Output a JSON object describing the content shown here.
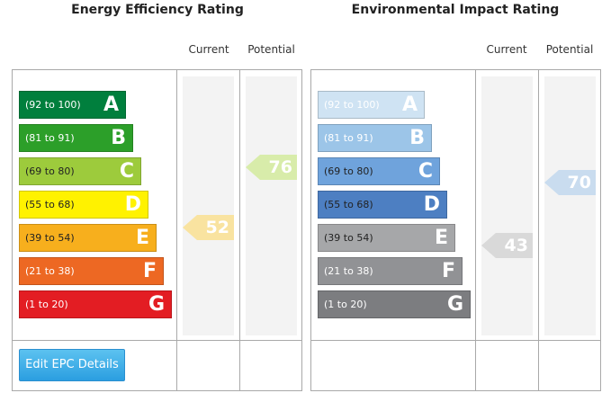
{
  "energy": {
    "title": "Energy Efficiency Rating",
    "current_label": "Current",
    "potential_label": "Potential",
    "bands": [
      {
        "range": "(92 to 100)",
        "letter": "A",
        "color": "#007f3d",
        "text_color": "#ffffff"
      },
      {
        "range": "(81 to 91)",
        "letter": "B",
        "color": "#2c9f29",
        "text_color": "#ffffff"
      },
      {
        "range": "(69 to 80)",
        "letter": "C",
        "color": "#9dcb3c",
        "text_color": "#222222"
      },
      {
        "range": "(55 to 68)",
        "letter": "D",
        "color": "#fff200",
        "text_color": "#222222"
      },
      {
        "range": "(39 to 54)",
        "letter": "E",
        "color": "#f7af1d",
        "text_color": "#222222"
      },
      {
        "range": "(21 to 38)",
        "letter": "F",
        "color": "#ed6823",
        "text_color": "#ffffff"
      },
      {
        "range": "(1 to 20)",
        "letter": "G",
        "color": "#e31d23",
        "text_color": "#ffffff"
      }
    ],
    "current": {
      "value": "52",
      "color": "#f9e3a0"
    },
    "potential": {
      "value": "76",
      "color": "#d8ecaa"
    }
  },
  "environment": {
    "title": "Environmental Impact Rating",
    "current_label": "Current",
    "potential_label": "Potential",
    "bands": [
      {
        "range": "(92 to 100)",
        "letter": "A",
        "color": "#cfe3f3",
        "text_color": "#ffffff"
      },
      {
        "range": "(81 to 91)",
        "letter": "B",
        "color": "#9cc5e8",
        "text_color": "#ffffff"
      },
      {
        "range": "(69 to 80)",
        "letter": "C",
        "color": "#6fa3dc",
        "text_color": "#222222"
      },
      {
        "range": "(55 to 68)",
        "letter": "D",
        "color": "#4d7fc2",
        "text_color": "#222222"
      },
      {
        "range": "(39 to 54)",
        "letter": "E",
        "color": "#a6a7a9",
        "text_color": "#222222"
      },
      {
        "range": "(21 to 38)",
        "letter": "F",
        "color": "#919295",
        "text_color": "#ffffff"
      },
      {
        "range": "(1 to 20)",
        "letter": "G",
        "color": "#7c7d80",
        "text_color": "#ffffff"
      }
    ],
    "current": {
      "value": "43",
      "color": "#d9d9d9"
    },
    "potential": {
      "value": "70",
      "color": "#c9dcef"
    }
  },
  "edit_button": {
    "label": "Edit EPC Details"
  }
}
